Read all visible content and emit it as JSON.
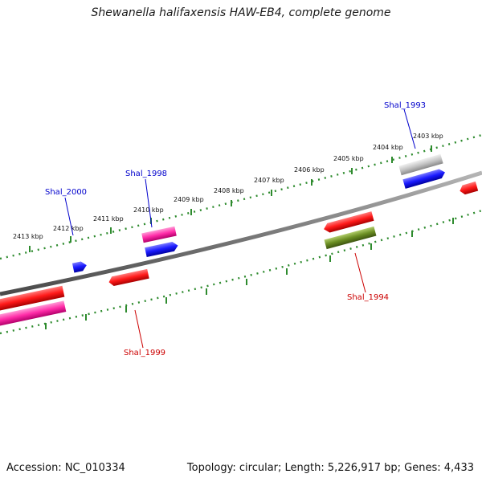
{
  "title": "Shewanella halifaxensis HAW-EB4, complete genome",
  "footer": {
    "accession": "Accession: NC_010334",
    "summary": "Topology: circular; Length: 5,226,917 bp; Genes: 4,433"
  },
  "colors": {
    "backbone": "#808080",
    "scale": "#2e8b2e",
    "forward_label": "#0000cc",
    "reverse_label": "#cc0000",
    "red": "#ff1a1a",
    "blue": "#1a1aff",
    "pink": "#ff2ca8",
    "grey": "#bdbdbd",
    "olive": "#6b8e23"
  },
  "scale_labels": [
    "2403 kbp",
    "2404 kbp",
    "2405 kbp",
    "2406 kbp",
    "2407 kbp",
    "2408 kbp",
    "2409 kbp",
    "2410 kbp",
    "2411 kbp",
    "2412 kbp",
    "2413 kbp"
  ],
  "gene_labels": [
    {
      "text": "Shal_1993",
      "strand": "forward"
    },
    {
      "text": "Shal_1998",
      "strand": "forward"
    },
    {
      "text": "Shal_2000",
      "strand": "forward"
    },
    {
      "text": "Shal_1994",
      "strand": "reverse"
    },
    {
      "text": "Shal_1999",
      "strand": "reverse"
    }
  ],
  "genes": [
    {
      "color": "red",
      "direction": "left"
    },
    {
      "color": "blue",
      "direction": "right"
    },
    {
      "color": "grey",
      "direction": "none"
    },
    {
      "color": "red",
      "direction": "left"
    },
    {
      "color": "olive",
      "direction": "none"
    },
    {
      "color": "pink",
      "direction": "none"
    },
    {
      "color": "blue",
      "direction": "right"
    },
    {
      "color": "red",
      "direction": "left"
    },
    {
      "color": "blue",
      "direction": "right"
    },
    {
      "color": "red",
      "direction": "none"
    },
    {
      "color": "pink",
      "direction": "none"
    }
  ]
}
